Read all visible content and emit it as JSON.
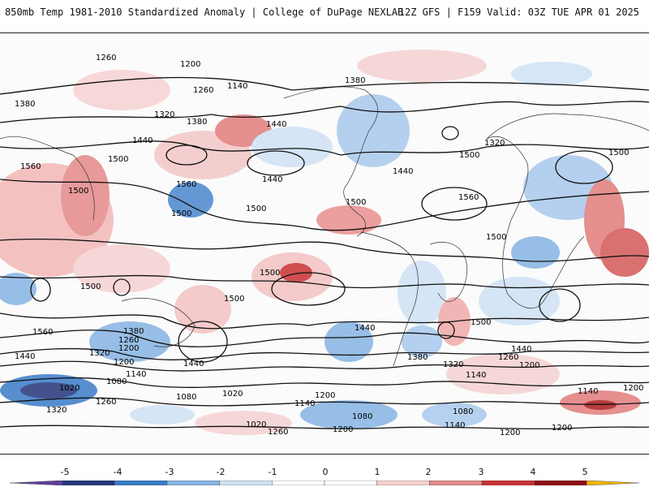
{
  "header": {
    "title_left": "850mb Temp 1981-2010 Standardized Anomaly | College of DuPage NEXLAB",
    "title_right": "12Z GFS | F159 Valid: 03Z TUE APR 01 2025"
  },
  "map": {
    "contour_labels": [
      "1260",
      "1200",
      "1140",
      "1260",
      "1380",
      "1320",
      "1380",
      "1320",
      "1380",
      "1440",
      "1500",
      "1440",
      "1560",
      "1500",
      "1500",
      "1560",
      "1500",
      "1440",
      "1500",
      "1500",
      "1500",
      "1500",
      "1560",
      "1440",
      "1500",
      "1500",
      "1560",
      "1440",
      "1500",
      "1380",
      "1260",
      "1200",
      "1320",
      "1440",
      "1020",
      "1080",
      "1140",
      "1200",
      "1260",
      "1320",
      "1080",
      "1020",
      "1140",
      "1200",
      "1080",
      "1020",
      "1260",
      "1200",
      "1140",
      "1200",
      "1260",
      "1380",
      "1320",
      "1440",
      "1200",
      "1140",
      "1200",
      "1080",
      "1140",
      "1200",
      "1500",
      "1440"
    ]
  },
  "colorbar": {
    "ticks": [
      "-5",
      "-4",
      "-3",
      "-2",
      "-1",
      "0",
      "1",
      "2",
      "3",
      "4",
      "5"
    ],
    "colors": [
      "#5b3d9b",
      "#23357a",
      "#3a7bc8",
      "#86b4e3",
      "#cfe2f4",
      "#ffffff",
      "#ffffff",
      "#f6d1d1",
      "#e58a8a",
      "#c83232",
      "#8e0f16",
      "#f2b400"
    ]
  }
}
